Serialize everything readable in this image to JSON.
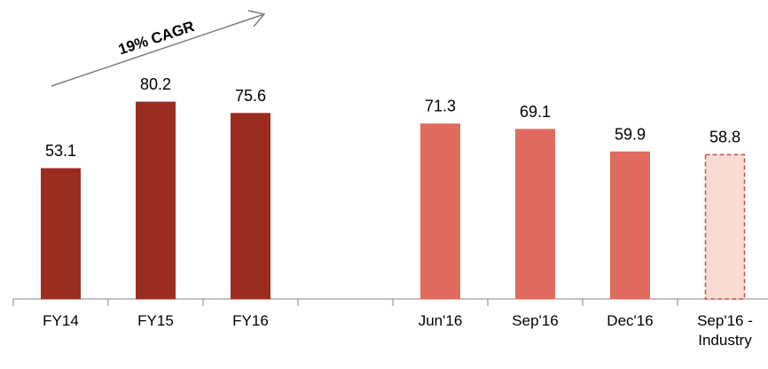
{
  "chart_data": {
    "type": "bar",
    "annotation": "19% CAGR",
    "categories": [
      "FY14",
      "FY15",
      "FY16",
      null,
      "Jun'16",
      "Sep'16",
      "Dec'16",
      "Sep'16 - Industry"
    ],
    "values": [
      53.1,
      80.2,
      75.6,
      null,
      71.3,
      69.1,
      59.9,
      58.8
    ],
    "colors": [
      "#9b2d20",
      "#9b2d20",
      "#9b2d20",
      null,
      "#e06a5e",
      "#e06a5e",
      "#e06a5e",
      "#fadbd2"
    ],
    "border_styles": [
      "solid",
      "solid",
      "solid",
      null,
      "solid",
      "solid",
      "solid",
      "dashed"
    ],
    "ylim": [
      0,
      120
    ]
  }
}
